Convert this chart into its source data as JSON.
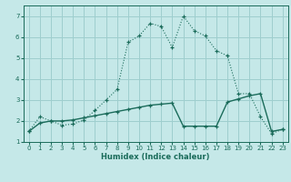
{
  "xlabel": "Humidex (Indice chaleur)",
  "ylabel": "",
  "bg_color": "#c5e8e8",
  "line_color": "#1a6b5a",
  "grid_color": "#9ecece",
  "xlim": [
    -0.5,
    23.5
  ],
  "ylim": [
    1.0,
    7.5
  ],
  "x_ticks": [
    0,
    1,
    2,
    3,
    4,
    5,
    6,
    7,
    8,
    9,
    10,
    11,
    12,
    13,
    14,
    15,
    16,
    17,
    18,
    19,
    20,
    21,
    22,
    23
  ],
  "y_ticks": [
    1,
    2,
    3,
    4,
    5,
    6,
    7
  ],
  "line1_x": [
    0,
    1,
    2,
    3,
    4,
    5,
    6,
    7,
    8,
    9,
    10,
    11,
    12,
    13,
    14,
    15,
    16,
    17,
    18,
    19,
    20,
    21,
    22,
    23
  ],
  "line1_y": [
    1.5,
    2.2,
    2.0,
    1.8,
    1.85,
    2.05,
    2.5,
    3.0,
    3.5,
    5.75,
    6.05,
    6.65,
    6.5,
    5.5,
    7.0,
    6.3,
    6.05,
    5.35,
    5.1,
    3.3,
    3.3,
    2.2,
    1.4,
    1.6
  ],
  "line2_x": [
    0,
    1,
    2,
    3,
    4,
    5,
    6,
    7,
    8,
    9,
    10,
    11,
    12,
    13,
    14,
    15,
    16,
    17,
    18,
    19,
    20,
    21,
    22,
    23
  ],
  "line2_y": [
    1.5,
    1.9,
    2.0,
    2.0,
    2.05,
    2.15,
    2.25,
    2.35,
    2.45,
    2.55,
    2.65,
    2.75,
    2.8,
    2.85,
    1.75,
    1.75,
    1.75,
    1.75,
    2.9,
    3.05,
    3.2,
    3.3,
    1.5,
    1.6
  ]
}
